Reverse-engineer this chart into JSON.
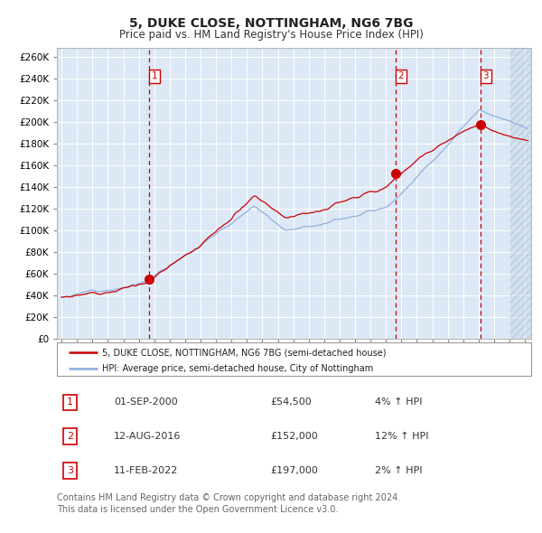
{
  "title": "5, DUKE CLOSE, NOTTINGHAM, NG6 7BG",
  "subtitle": "Price paid vs. HM Land Registry's House Price Index (HPI)",
  "title_fontsize": 10,
  "subtitle_fontsize": 8.5,
  "line1_label": "5, DUKE CLOSE, NOTTINGHAM, NG6 7BG (semi-detached house)",
  "line2_label": "HPI: Average price, semi-detached house, City of Nottingham",
  "line1_color": "#cc0000",
  "line2_color": "#88aadd",
  "plot_bg": "#dce8f5",
  "y_ticks": [
    0,
    20000,
    40000,
    60000,
    80000,
    100000,
    120000,
    140000,
    160000,
    180000,
    200000,
    220000,
    240000,
    260000
  ],
  "ylim": [
    0,
    268000
  ],
  "vline1_x": 2000.67,
  "vline2_x": 2016.62,
  "vline3_x": 2022.12,
  "future_start_x": 2024.0,
  "xlim_left": 1994.7,
  "xlim_right": 2025.4,
  "sale_dates_display": [
    "01-SEP-2000",
    "12-AUG-2016",
    "11-FEB-2022"
  ],
  "sale_prices_display": [
    "£54,500",
    "£152,000",
    "£197,000"
  ],
  "sale_hpi_pct_display": [
    "4% ↑ HPI",
    "12% ↑ HPI",
    "2% ↑ HPI"
  ],
  "sale_prices": [
    54500,
    152000,
    197000
  ],
  "footer": "Contains HM Land Registry data © Crown copyright and database right 2024.\nThis data is licensed under the Open Government Licence v3.0.",
  "footer_fontsize": 7.0
}
